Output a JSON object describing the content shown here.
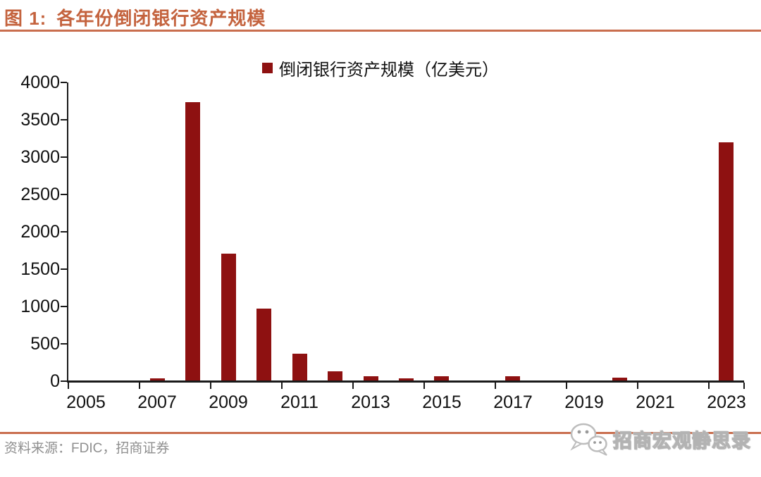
{
  "page": {
    "figure_label": "图 1:",
    "title": "各年份倒闭银行资产规模",
    "source": "资料来源：FDIC，招商证券",
    "watermark": "招商宏观静思录",
    "accent_color": "#C96E4E",
    "bar_color": "#8E1111",
    "icons": {
      "watermark_logo": "wechat-icon"
    }
  },
  "chart_data": {
    "type": "bar",
    "title": "各年份倒闭银行资产规模",
    "legend": [
      "倒闭银行资产规模（亿美元）"
    ],
    "legend_position": "top-center",
    "categories": [
      2005,
      2006,
      2007,
      2008,
      2009,
      2010,
      2011,
      2012,
      2013,
      2014,
      2015,
      2016,
      2017,
      2018,
      2019,
      2020,
      2021,
      2022,
      2023
    ],
    "values": [
      0,
      0,
      25,
      3730,
      1700,
      960,
      360,
      120,
      60,
      30,
      60,
      0,
      60,
      0,
      0,
      40,
      0,
      0,
      3190
    ],
    "xlabel": "",
    "ylabel": "",
    "ylim": [
      0,
      4000
    ],
    "ytick_step": 500,
    "xtick_labels": [
      "2005",
      "2007",
      "2009",
      "2011",
      "2013",
      "2015",
      "2017",
      "2019",
      "2021",
      "2023"
    ],
    "grid": false,
    "bar_color": "#8E1111"
  }
}
